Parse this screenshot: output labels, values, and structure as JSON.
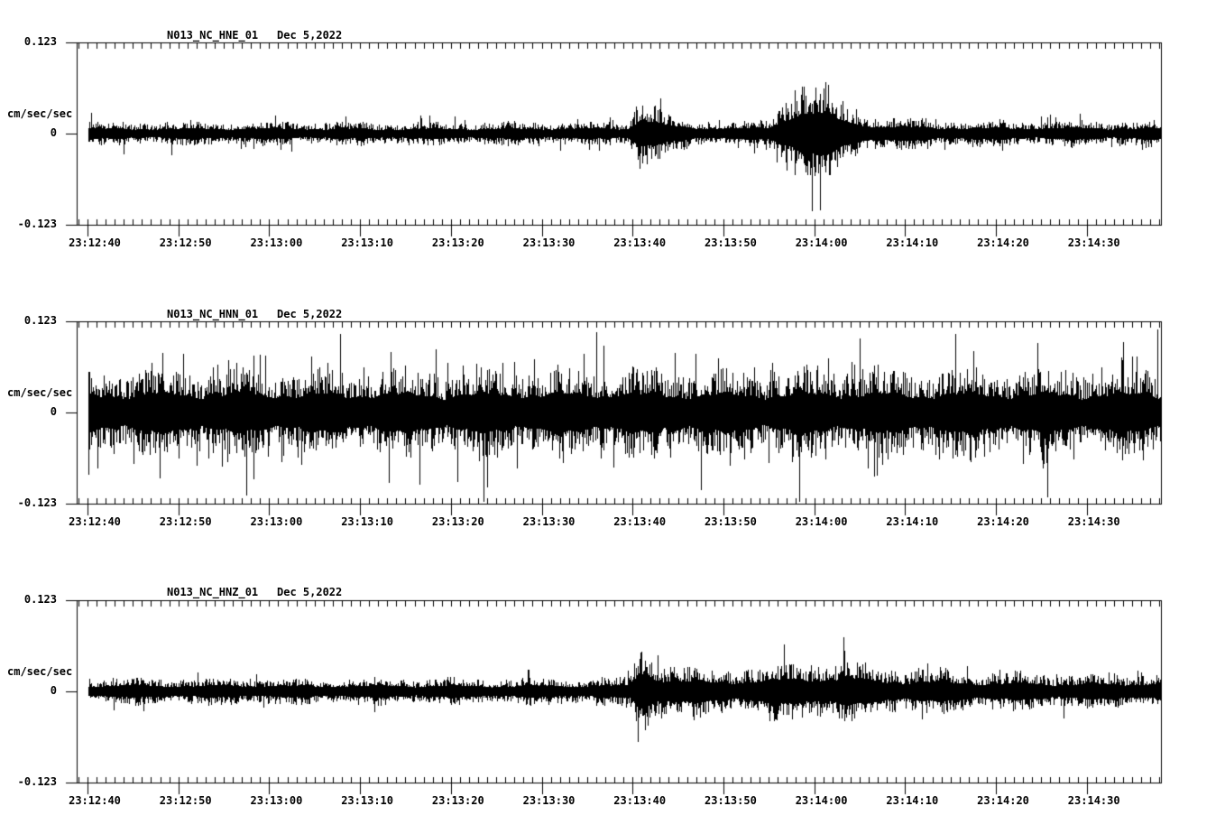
{
  "window": {
    "background": "#ffffff",
    "foreground": "#000000"
  },
  "y_axis": {
    "top_label": "0.123",
    "zero_label": "0",
    "bottom_label": "-0.123",
    "unit_label": "cm/sec/sec",
    "max": 0.123,
    "min": -0.123
  },
  "time_axis": {
    "tick_labels": [
      "23:12:40",
      "23:12:50",
      "23:13:00",
      "23:13:10",
      "23:13:20",
      "23:13:30",
      "23:13:40",
      "23:13:50",
      "23:14:00",
      "23:14:10",
      "23:14:20",
      "23:14:30"
    ],
    "major_tick_interval_s": 10,
    "minor_tick_interval_s": 1,
    "window_start": "23:12:39",
    "window_end": "23:14:38"
  },
  "panels": [
    {
      "station": "N013_NC_HNE_01",
      "date": "Dec 5,2022"
    },
    {
      "station": "N013_NC_HNN_01",
      "date": "Dec 5,2022"
    },
    {
      "station": "N013_NC_HNZ_01",
      "date": "Dec 5,2022"
    }
  ],
  "chart_data": [
    {
      "type": "line",
      "title": "N013_NC_HNE_01  Dec 5,2022",
      "ylabel": "cm/sec/sec",
      "ylim": [
        -0.123,
        0.123
      ],
      "x_unit": "seconds after 23:12:40",
      "xlim": [
        0,
        118.2
      ],
      "grid": false,
      "features": "quiet background noise; small transient near 23:13:41; strongest burst 23:13:56-23:14:04 then slightly elevated noise",
      "envelope": {
        "t": [
          0,
          15,
          30,
          45,
          58,
          59.5,
          60.3,
          60.8,
          61.5,
          62.5,
          63.5,
          65,
          68,
          72,
          74.5,
          75.5,
          76.5,
          77.5,
          78.5,
          80,
          81.5,
          82.5,
          83.5,
          85,
          87,
          90,
          95,
          102,
          110,
          118.2
        ],
        "a": [
          0.012,
          0.0125,
          0.012,
          0.012,
          0.0125,
          0.014,
          0.028,
          0.042,
          0.036,
          0.028,
          0.022,
          0.017,
          0.014,
          0.013,
          0.014,
          0.02,
          0.034,
          0.048,
          0.055,
          0.054,
          0.047,
          0.038,
          0.03,
          0.024,
          0.019,
          0.016,
          0.0145,
          0.014,
          0.0135,
          0.0135
        ]
      },
      "spikes": [
        {
          "t": 60.4,
          "a": 0.036
        },
        {
          "t": 60.8,
          "a": -0.047
        },
        {
          "t": 61.6,
          "a": -0.042
        },
        {
          "t": 77.0,
          "a": -0.05
        },
        {
          "t": 77.9,
          "a": 0.058
        },
        {
          "t": 79.2,
          "a": -0.056
        },
        {
          "t": 80.6,
          "a": 0.054
        }
      ],
      "noise": {
        "p_spike": 0.1
      }
    },
    {
      "type": "line",
      "title": "N013_NC_HNN_01  Dec 5,2022",
      "ylabel": "cm/sec/sec",
      "ylim": [
        -0.123,
        0.123
      ],
      "x_unit": "seconds after 23:12:40",
      "xlim": [
        0,
        118.2
      ],
      "grid": false,
      "features": "high-amplitude noise throughout the whole window, frequent spikes approaching full scale",
      "envelope": {
        "t": [
          0,
          10,
          20,
          30,
          40,
          50,
          60,
          70,
          80,
          90,
          100,
          110,
          118.2
        ],
        "a": [
          0.044,
          0.047,
          0.045,
          0.046,
          0.045,
          0.047,
          0.046,
          0.045,
          0.047,
          0.046,
          0.047,
          0.046,
          0.046
        ]
      },
      "spikes": [
        {
          "t": 17.5,
          "a": -0.112
        },
        {
          "t": 18.3,
          "a": -0.09
        },
        {
          "t": 36.5,
          "a": -0.098
        },
        {
          "t": 56.0,
          "a": 0.108
        },
        {
          "t": 67.5,
          "a": -0.105
        },
        {
          "t": 85.0,
          "a": 0.1
        },
        {
          "t": 95.5,
          "a": 0.106
        },
        {
          "t": 117.8,
          "a": 0.112
        }
      ],
      "noise": {
        "p_spike": 0.22
      }
    },
    {
      "type": "line",
      "title": "N013_NC_HNZ_01  Dec 5,2022",
      "ylabel": "cm/sec/sec",
      "ylim": [
        -0.123,
        0.123
      ],
      "x_unit": "seconds after 23:12:40",
      "xlim": [
        0,
        118.2
      ],
      "grid": false,
      "features": "quiet background; sharp onset at 23:13:40 with large downward spike, extended elevated coda decaying toward end",
      "envelope": {
        "t": [
          0,
          20,
          40,
          55,
          59,
          59.8,
          60.3,
          60.8,
          61.5,
          62.5,
          64,
          66,
          69,
          72,
          75,
          77,
          79,
          81,
          82.5,
          84,
          86,
          88,
          91,
          94,
          98,
          102,
          106,
          110,
          114,
          117,
          118.2
        ],
        "a": [
          0.014,
          0.014,
          0.014,
          0.014,
          0.0145,
          0.016,
          0.038,
          0.055,
          0.044,
          0.034,
          0.029,
          0.026,
          0.024,
          0.025,
          0.028,
          0.03,
          0.032,
          0.03,
          0.033,
          0.031,
          0.028,
          0.026,
          0.024,
          0.023,
          0.021,
          0.02,
          0.019,
          0.018,
          0.018,
          0.02,
          0.021
        ]
      },
      "spikes": [
        {
          "t": 60.2,
          "a": 0.038
        },
        {
          "t": 60.6,
          "a": -0.068
        },
        {
          "t": 61.0,
          "a": 0.046
        },
        {
          "t": 61.4,
          "a": -0.052
        }
      ],
      "noise": {
        "p_spike": 0.1
      }
    }
  ]
}
